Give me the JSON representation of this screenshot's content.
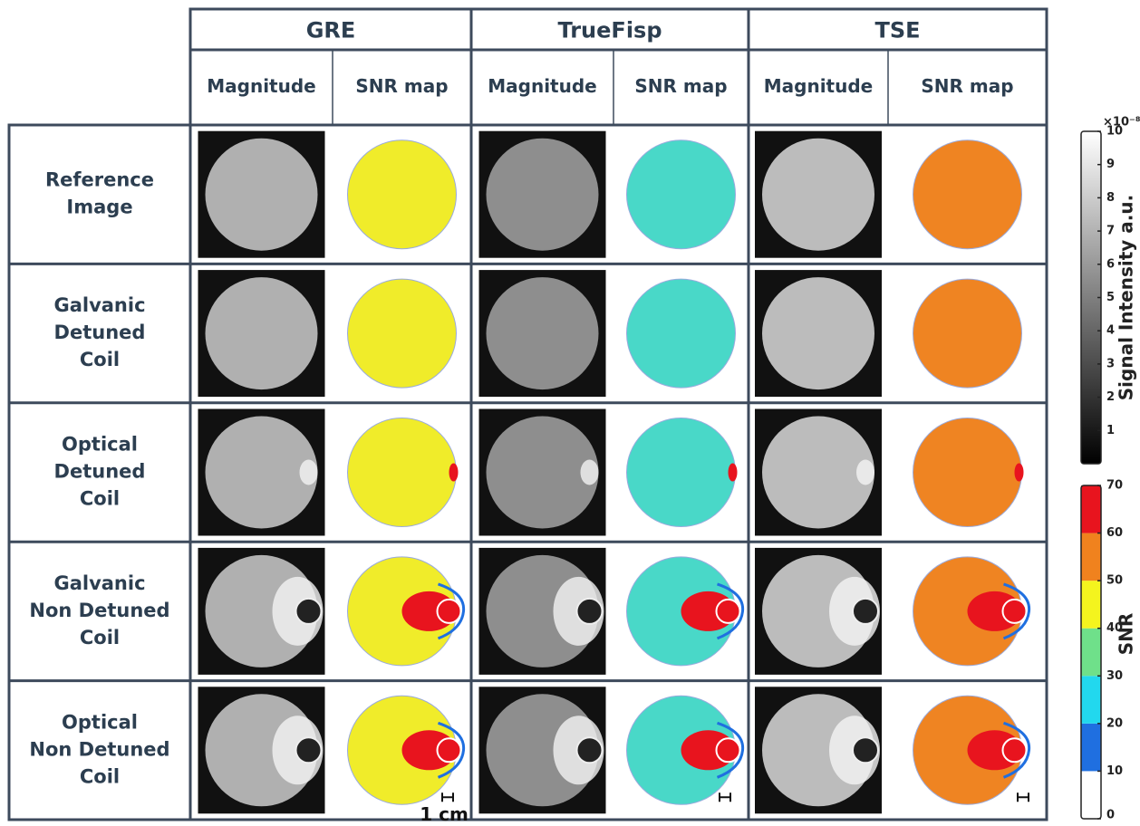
{
  "columns": [
    {
      "name": "GRE",
      "subcolumns": [
        "Magnitude",
        "SNR map"
      ]
    },
    {
      "name": "TrueFisp",
      "subcolumns": [
        "Magnitude",
        "SNR map"
      ]
    },
    {
      "name": "TSE",
      "subcolumns": [
        "Magnitude",
        "SNR map"
      ]
    }
  ],
  "rows": [
    {
      "label": [
        "Reference",
        "Image"
      ]
    },
    {
      "label": [
        "Galvanic",
        "Detuned",
        "Coil"
      ]
    },
    {
      "label": [
        "Optical",
        "Detuned",
        "Coil"
      ]
    },
    {
      "label": [
        "Galvanic",
        "Non Detuned",
        "Coil"
      ]
    },
    {
      "label": [
        "Optical",
        "Non Detuned",
        "Coil"
      ]
    }
  ],
  "scale_bar": "1 cm",
  "colorbars": {
    "intensity": {
      "label": "Signal Intensity a.u.",
      "multiplier": "×10⁻⁸",
      "lim": [
        0,
        10
      ],
      "ticks": [
        1,
        2,
        3,
        4,
        5,
        6,
        7,
        8,
        9,
        10
      ],
      "colors": [
        "#000000",
        "#ffffff"
      ]
    },
    "snr": {
      "label": "SNR",
      "lim": [
        0,
        70
      ],
      "ticks": [
        0,
        10,
        20,
        30,
        40,
        50,
        60,
        70
      ],
      "colors": [
        "#ffffff",
        "#1f6fe0",
        "#22d8ee",
        "#6fe08a",
        "#f4f41e",
        "#f0821e",
        "#e8141e"
      ]
    }
  }
}
